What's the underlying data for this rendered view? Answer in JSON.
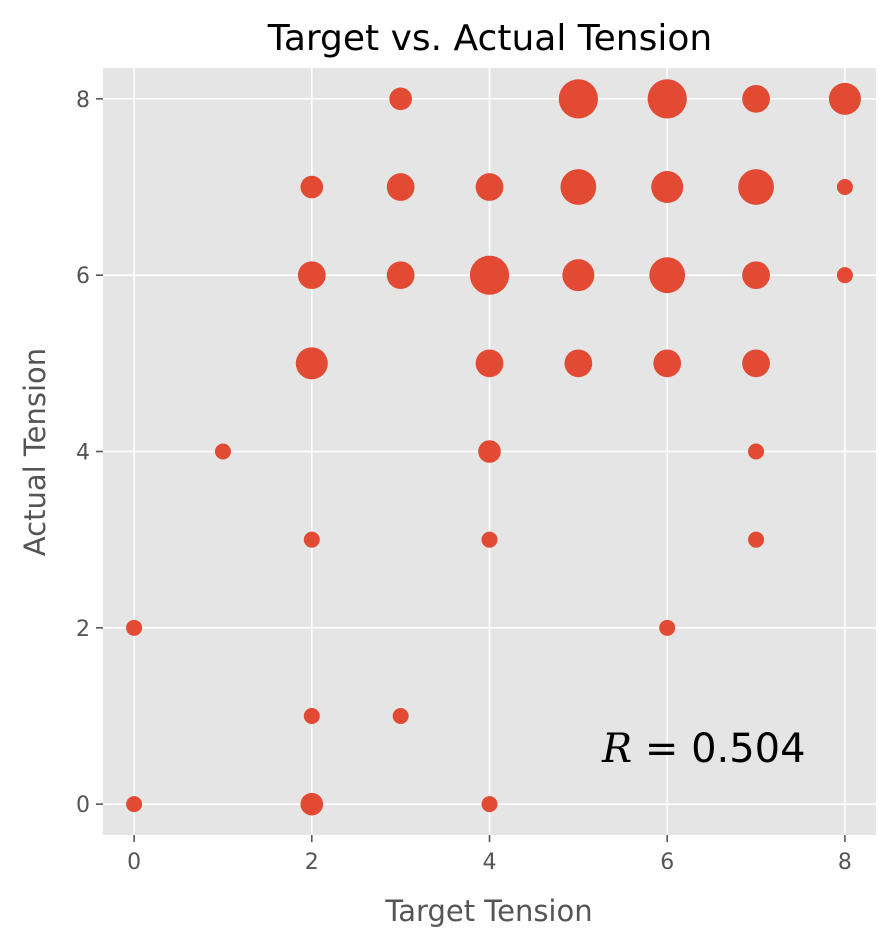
{
  "chart_data": {
    "type": "scatter",
    "title": "Target vs. Actual Tension",
    "xlabel": "Target Tension",
    "ylabel": "Actual Tension",
    "xlim": [
      -0.35,
      8.35
    ],
    "ylim": [
      -0.35,
      8.35
    ],
    "xticks": [
      0,
      2,
      4,
      6,
      8
    ],
    "yticks": [
      0,
      2,
      4,
      6,
      8
    ],
    "grid": true,
    "background": "#e5e5e5",
    "grid_color": "#ffffff",
    "marker_color": "#e24a33",
    "annotation": {
      "variable": "R",
      "rest": " = 0.504"
    },
    "points": [
      {
        "x": 0,
        "y": 0,
        "count": 1
      },
      {
        "x": 0,
        "y": 2,
        "count": 1
      },
      {
        "x": 1,
        "y": 4,
        "count": 1
      },
      {
        "x": 2,
        "y": 0,
        "count": 2
      },
      {
        "x": 2,
        "y": 1,
        "count": 1
      },
      {
        "x": 2,
        "y": 3,
        "count": 1
      },
      {
        "x": 2,
        "y": 5,
        "count": 4
      },
      {
        "x": 2,
        "y": 6,
        "count": 3
      },
      {
        "x": 2,
        "y": 7,
        "count": 2
      },
      {
        "x": 3,
        "y": 1,
        "count": 1
      },
      {
        "x": 3,
        "y": 6,
        "count": 3
      },
      {
        "x": 3,
        "y": 7,
        "count": 3
      },
      {
        "x": 3,
        "y": 8,
        "count": 2
      },
      {
        "x": 4,
        "y": 0,
        "count": 1
      },
      {
        "x": 4,
        "y": 3,
        "count": 1
      },
      {
        "x": 4,
        "y": 4,
        "count": 2
      },
      {
        "x": 4,
        "y": 5,
        "count": 3
      },
      {
        "x": 4,
        "y": 6,
        "count": 6
      },
      {
        "x": 4,
        "y": 7,
        "count": 3
      },
      {
        "x": 5,
        "y": 5,
        "count": 3
      },
      {
        "x": 5,
        "y": 6,
        "count": 4
      },
      {
        "x": 5,
        "y": 7,
        "count": 5
      },
      {
        "x": 5,
        "y": 8,
        "count": 6
      },
      {
        "x": 6,
        "y": 2,
        "count": 1
      },
      {
        "x": 6,
        "y": 5,
        "count": 3
      },
      {
        "x": 6,
        "y": 6,
        "count": 5
      },
      {
        "x": 6,
        "y": 7,
        "count": 4
      },
      {
        "x": 6,
        "y": 8,
        "count": 6
      },
      {
        "x": 7,
        "y": 3,
        "count": 1
      },
      {
        "x": 7,
        "y": 4,
        "count": 1
      },
      {
        "x": 7,
        "y": 5,
        "count": 3
      },
      {
        "x": 7,
        "y": 6,
        "count": 3
      },
      {
        "x": 7,
        "y": 7,
        "count": 5
      },
      {
        "x": 7,
        "y": 8,
        "count": 3
      },
      {
        "x": 8,
        "y": 6,
        "count": 1
      },
      {
        "x": 8,
        "y": 7,
        "count": 1
      },
      {
        "x": 8,
        "y": 8,
        "count": 4
      }
    ]
  }
}
